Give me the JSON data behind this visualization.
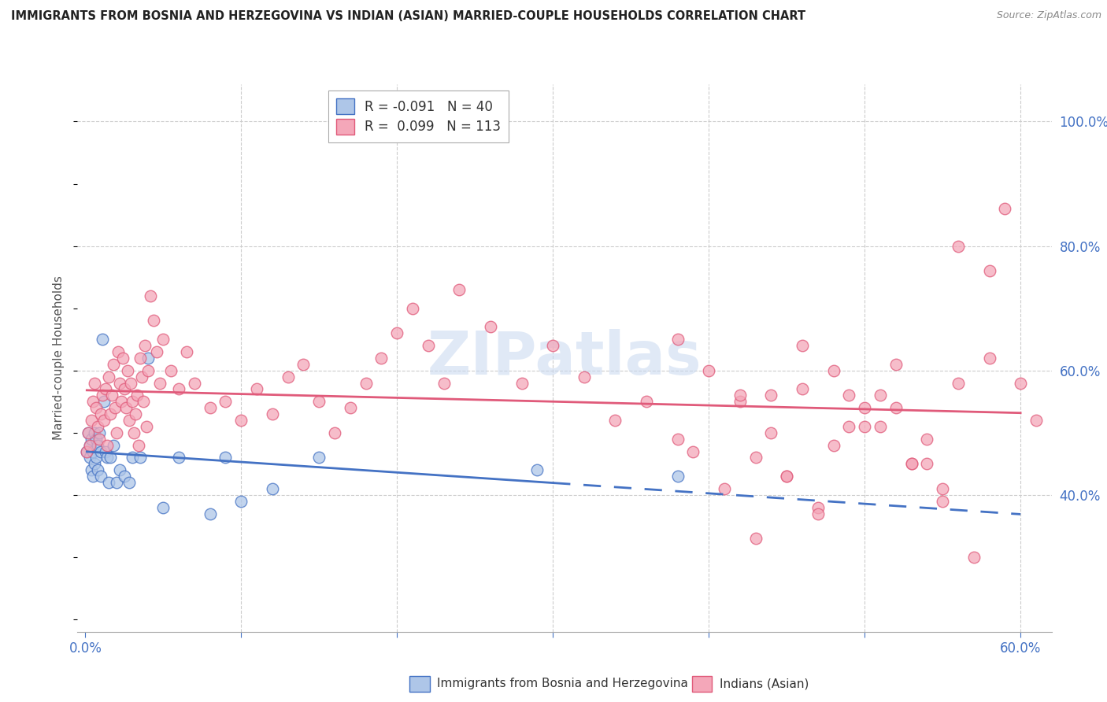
{
  "title": "IMMIGRANTS FROM BOSNIA AND HERZEGOVINA VS INDIAN (ASIAN) MARRIED-COUPLE HOUSEHOLDS CORRELATION CHART",
  "source": "Source: ZipAtlas.com",
  "ylabel": "Married-couple Households",
  "x_tick_vals": [
    0.0,
    0.1,
    0.2,
    0.3,
    0.4,
    0.5,
    0.6
  ],
  "x_tick_labels_show": [
    "0.0%",
    "",
    "",
    "",
    "",
    "",
    "60.0%"
  ],
  "y_tick_vals": [
    1.0,
    0.8,
    0.6,
    0.4
  ],
  "y_tick_labels": [
    "100.0%",
    "80.0%",
    "60.0%",
    "40.0%"
  ],
  "y_lim": [
    0.18,
    1.06
  ],
  "x_lim": [
    -0.005,
    0.62
  ],
  "blue_color": "#aec6e8",
  "pink_color": "#f4a7b9",
  "blue_line_color": "#4472c4",
  "pink_line_color": "#e05a7a",
  "watermark": "ZIPatlas",
  "watermark_color": "#c8d8f0",
  "background_color": "#ffffff",
  "grid_color": "#cccccc",
  "axis_color": "#4472c4",
  "blue_R": "-0.091",
  "blue_N": "40",
  "pink_R": "0.099",
  "pink_N": "113",
  "blue_scatter_x": [
    0.001,
    0.002,
    0.003,
    0.003,
    0.004,
    0.004,
    0.005,
    0.005,
    0.006,
    0.006,
    0.007,
    0.007,
    0.008,
    0.008,
    0.009,
    0.01,
    0.01,
    0.011,
    0.012,
    0.013,
    0.014,
    0.015,
    0.016,
    0.018,
    0.02,
    0.022,
    0.025,
    0.028,
    0.03,
    0.035,
    0.04,
    0.05,
    0.06,
    0.08,
    0.09,
    0.1,
    0.12,
    0.15,
    0.29,
    0.38
  ],
  "blue_scatter_y": [
    0.47,
    0.5,
    0.46,
    0.48,
    0.49,
    0.44,
    0.47,
    0.43,
    0.5,
    0.45,
    0.49,
    0.46,
    0.48,
    0.44,
    0.5,
    0.47,
    0.43,
    0.65,
    0.55,
    0.47,
    0.46,
    0.42,
    0.46,
    0.48,
    0.42,
    0.44,
    0.43,
    0.42,
    0.46,
    0.46,
    0.62,
    0.38,
    0.46,
    0.37,
    0.46,
    0.39,
    0.41,
    0.46,
    0.44,
    0.43
  ],
  "pink_scatter_x": [
    0.001,
    0.002,
    0.003,
    0.004,
    0.005,
    0.006,
    0.007,
    0.008,
    0.009,
    0.01,
    0.011,
    0.012,
    0.013,
    0.014,
    0.015,
    0.016,
    0.017,
    0.018,
    0.019,
    0.02,
    0.021,
    0.022,
    0.023,
    0.024,
    0.025,
    0.026,
    0.027,
    0.028,
    0.029,
    0.03,
    0.031,
    0.032,
    0.033,
    0.034,
    0.035,
    0.036,
    0.037,
    0.038,
    0.039,
    0.04,
    0.042,
    0.044,
    0.046,
    0.048,
    0.05,
    0.055,
    0.06,
    0.065,
    0.07,
    0.08,
    0.09,
    0.1,
    0.11,
    0.12,
    0.13,
    0.14,
    0.15,
    0.16,
    0.17,
    0.18,
    0.19,
    0.2,
    0.21,
    0.22,
    0.23,
    0.24,
    0.26,
    0.28,
    0.3,
    0.32,
    0.34,
    0.36,
    0.38,
    0.4,
    0.42,
    0.44,
    0.46,
    0.48,
    0.5,
    0.52,
    0.54,
    0.56,
    0.58,
    0.6,
    0.38,
    0.42,
    0.44,
    0.46,
    0.48,
    0.5,
    0.52,
    0.54,
    0.56,
    0.58,
    0.39,
    0.41,
    0.43,
    0.45,
    0.47,
    0.49,
    0.51,
    0.53,
    0.55,
    0.57,
    0.59,
    0.61,
    0.43,
    0.45,
    0.47,
    0.49,
    0.51,
    0.53,
    0.55
  ],
  "pink_scatter_y": [
    0.47,
    0.5,
    0.48,
    0.52,
    0.55,
    0.58,
    0.54,
    0.51,
    0.49,
    0.53,
    0.56,
    0.52,
    0.57,
    0.48,
    0.59,
    0.53,
    0.56,
    0.61,
    0.54,
    0.5,
    0.63,
    0.58,
    0.55,
    0.62,
    0.57,
    0.54,
    0.6,
    0.52,
    0.58,
    0.55,
    0.5,
    0.53,
    0.56,
    0.48,
    0.62,
    0.59,
    0.55,
    0.64,
    0.51,
    0.6,
    0.72,
    0.68,
    0.63,
    0.58,
    0.65,
    0.6,
    0.57,
    0.63,
    0.58,
    0.54,
    0.55,
    0.52,
    0.57,
    0.53,
    0.59,
    0.61,
    0.55,
    0.5,
    0.54,
    0.58,
    0.62,
    0.66,
    0.7,
    0.64,
    0.58,
    0.73,
    0.67,
    0.58,
    0.64,
    0.59,
    0.52,
    0.55,
    0.65,
    0.6,
    0.55,
    0.56,
    0.57,
    0.6,
    0.54,
    0.61,
    0.49,
    0.58,
    0.62,
    0.58,
    0.49,
    0.56,
    0.5,
    0.64,
    0.48,
    0.51,
    0.54,
    0.45,
    0.8,
    0.76,
    0.47,
    0.41,
    0.33,
    0.43,
    0.38,
    0.56,
    0.51,
    0.45,
    0.39,
    0.3,
    0.86,
    0.52,
    0.46,
    0.43,
    0.37,
    0.51,
    0.56,
    0.45,
    0.41
  ]
}
